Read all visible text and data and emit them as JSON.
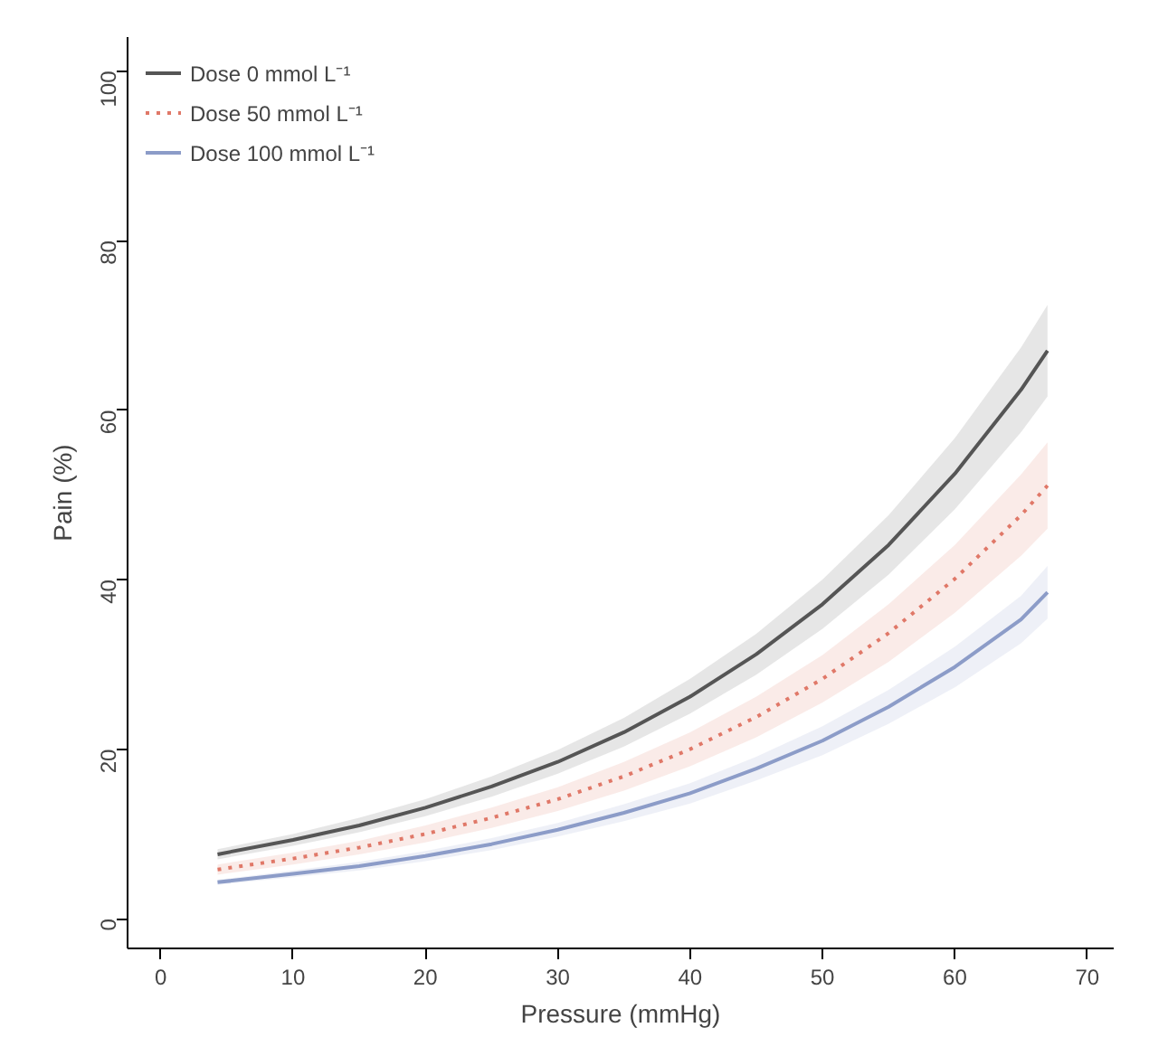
{
  "chart_data": {
    "type": "line",
    "xlabel": "Pressure (mmHg)",
    "ylabel": "Pain (%)",
    "x": [
      4.3,
      10,
      15,
      20,
      25,
      30,
      35,
      40,
      45,
      50,
      55,
      60,
      65,
      67
    ],
    "series": [
      {
        "name": "Dose 0 mmol L⁻¹",
        "color": "#555555",
        "line_style": "solid",
        "values": [
          7.6,
          9.3,
          11.0,
          13.1,
          15.6,
          18.5,
          22.0,
          26.2,
          31.2,
          37.1,
          44.1,
          52.5,
          62.4,
          67.0
        ],
        "lower": [
          7.0,
          8.6,
          10.2,
          12.1,
          14.4,
          17.1,
          20.3,
          24.2,
          28.8,
          34.2,
          40.6,
          48.3,
          57.4,
          61.6
        ],
        "upper": [
          8.2,
          10.0,
          11.9,
          14.1,
          16.8,
          19.9,
          23.7,
          28.3,
          33.6,
          40.0,
          47.6,
          56.7,
          67.4,
          72.4
        ]
      },
      {
        "name": "Dose 50 mmol L⁻¹",
        "color": "#e07868",
        "line_style": "dotted",
        "values": [
          5.8,
          7.1,
          8.4,
          10.0,
          11.9,
          14.1,
          16.8,
          20.0,
          23.8,
          28.3,
          33.7,
          40.1,
          47.6,
          51.1
        ],
        "lower": [
          5.2,
          6.4,
          7.6,
          9.0,
          10.7,
          12.7,
          15.1,
          18.0,
          21.4,
          25.5,
          30.3,
          36.1,
          42.8,
          46.0
        ],
        "upper": [
          6.4,
          7.8,
          9.2,
          11.0,
          13.1,
          15.5,
          18.5,
          22.0,
          26.2,
          31.1,
          37.1,
          44.1,
          52.4,
          56.2
        ]
      },
      {
        "name": "Dose 100 mmol L⁻¹",
        "color": "#8c9cc8",
        "line_style": "solid",
        "values": [
          4.3,
          5.3,
          6.2,
          7.4,
          8.8,
          10.5,
          12.5,
          14.8,
          17.7,
          21.0,
          25.0,
          29.7,
          35.3,
          38.5
        ],
        "lower": [
          4.0,
          4.9,
          5.7,
          6.8,
          8.1,
          9.7,
          11.5,
          13.6,
          16.3,
          19.3,
          23.0,
          27.3,
          32.5,
          35.4
        ],
        "upper": [
          4.6,
          5.7,
          6.7,
          8.0,
          9.5,
          11.3,
          13.5,
          16.0,
          19.1,
          22.7,
          27.0,
          32.1,
          38.1,
          41.6
        ]
      }
    ],
    "xlim": [
      -2.5,
      72
    ],
    "ylim": [
      -3.5,
      104
    ],
    "xticks": [
      0,
      10,
      20,
      30,
      40,
      50,
      60,
      70
    ],
    "yticks": [
      0,
      20,
      40,
      60,
      80,
      100
    ],
    "grid": false,
    "legend": "top left",
    "marker": "none"
  }
}
